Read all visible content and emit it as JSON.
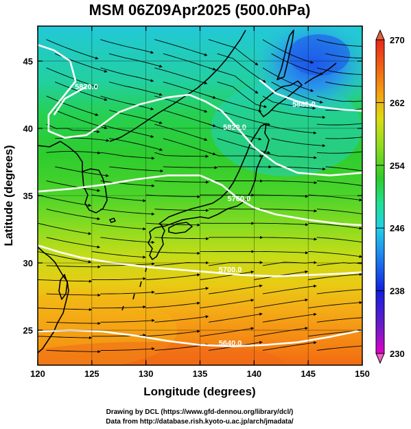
{
  "chart_data": {
    "type": "heatmap",
    "title": "MSM 06Z09Apr2025 (500.0hPa)",
    "xlabel": "Longitude (degrees)",
    "ylabel": "Latitude  (degrees)",
    "xlim": [
      120,
      150
    ],
    "ylim": [
      22.4,
      47.6
    ],
    "xticks": [
      120,
      125,
      130,
      135,
      140,
      145,
      150
    ],
    "yticks": [
      25,
      30,
      35,
      40,
      45
    ],
    "xtick_labels": [
      "120",
      "125",
      "130",
      "135",
      "140",
      "145",
      "150"
    ],
    "ytick_labels": [
      "25",
      "30",
      "35",
      "40",
      "45"
    ],
    "colorbar": {
      "min": 230,
      "max": 270,
      "ticks": [
        230,
        238,
        246,
        254,
        262,
        270
      ],
      "tick_labels": [
        "230",
        "238",
        "246",
        "254",
        "262",
        "270"
      ],
      "colors": [
        "#e000c8",
        "#6a1cc8",
        "#1020e0",
        "#1f8cf0",
        "#22d0e6",
        "#20e090",
        "#2ecc2a",
        "#8edc20",
        "#dcdc14",
        "#f5a014",
        "#f06414",
        "#e8281c"
      ]
    },
    "contours": [
      {
        "label": "5640.0",
        "points": [
          [
            120.0,
            24.9
          ],
          [
            123,
            25.0
          ],
          [
            126,
            24.9
          ],
          [
            129,
            24.6
          ],
          [
            132,
            24.2
          ],
          [
            135,
            23.9
          ],
          [
            138,
            23.8
          ],
          [
            141,
            23.9
          ],
          [
            144,
            24.1
          ],
          [
            147,
            24.5
          ],
          [
            150,
            25.0
          ]
        ],
        "label_at": [
          137.8,
          23.85
        ]
      },
      {
        "label": "5700.0",
        "points": [
          [
            120.0,
            31.3
          ],
          [
            122,
            30.8
          ],
          [
            124,
            30.4
          ],
          [
            127,
            30.0
          ],
          [
            130,
            29.7
          ],
          [
            133,
            29.5
          ],
          [
            136,
            29.3
          ],
          [
            139,
            29.1
          ],
          [
            142,
            29.0
          ],
          [
            145,
            29.1
          ],
          [
            148,
            29.2
          ],
          [
            150,
            29.3
          ]
        ],
        "label_at": [
          137.8,
          29.3
        ]
      },
      {
        "label": "5760.0",
        "points": [
          [
            120.0,
            35.3
          ],
          [
            123,
            35.5
          ],
          [
            126,
            35.8
          ],
          [
            129,
            36.2
          ],
          [
            132,
            36.5
          ],
          [
            135,
            36.5
          ],
          [
            137,
            35.8
          ],
          [
            138.5,
            34.8
          ],
          [
            140,
            34.1
          ],
          [
            142,
            33.6
          ],
          [
            145,
            33.2
          ],
          [
            148,
            32.9
          ],
          [
            150,
            32.8
          ]
        ],
        "label_at": [
          138.6,
          34.6
        ]
      },
      {
        "label": "5820.0",
        "points": [
          [
            120.0,
            46.2
          ],
          [
            121.5,
            45.8
          ],
          [
            123,
            45.0
          ],
          [
            123.5,
            43.5
          ],
          [
            122,
            42.0
          ],
          [
            121.0,
            41.0
          ],
          [
            121.0,
            39.8
          ],
          [
            122.5,
            39.3
          ],
          [
            124.5,
            39.5
          ],
          [
            126,
            40.3
          ],
          [
            127.5,
            41.2
          ],
          [
            129.5,
            41.8
          ],
          [
            132,
            42.3
          ],
          [
            134,
            42.5
          ],
          [
            135.5,
            42.0
          ],
          [
            137,
            41.3
          ],
          [
            138.5,
            40.0
          ],
          [
            140,
            38.6
          ],
          [
            142,
            37.4
          ],
          [
            144,
            36.7
          ],
          [
            147,
            36.5
          ],
          [
            150,
            36.7
          ]
        ],
        "label_at": [
          138.2,
          39.9
        ]
      },
      {
        "label": "5880.0",
        "points": [
          [
            140.5,
            43.6
          ],
          [
            142,
            42.6
          ],
          [
            144,
            42.0
          ],
          [
            146,
            41.6
          ],
          [
            148,
            41.4
          ],
          [
            150,
            41.3
          ]
        ],
        "label_at": [
          144.6,
          41.6
        ]
      },
      {
        "label": "5820.0",
        "points": [
          [
            121.5,
            41.0
          ],
          [
            122.5,
            42.2
          ],
          [
            124.5,
            43.1
          ]
        ],
        "label_at": [
          124.5,
          42.9
        ]
      }
    ]
  },
  "credits": {
    "line1": "Drawing by DCL (https://www.gfd-dennou.org/library/dcl/)",
    "line2": "Data from http://database.rish.kyoto-u.ac.jp/arch/jmadata/"
  },
  "colors": {
    "contour": "#ffffff",
    "frame": "#000000",
    "streamline": "#000000",
    "coastline": "#000000"
  }
}
